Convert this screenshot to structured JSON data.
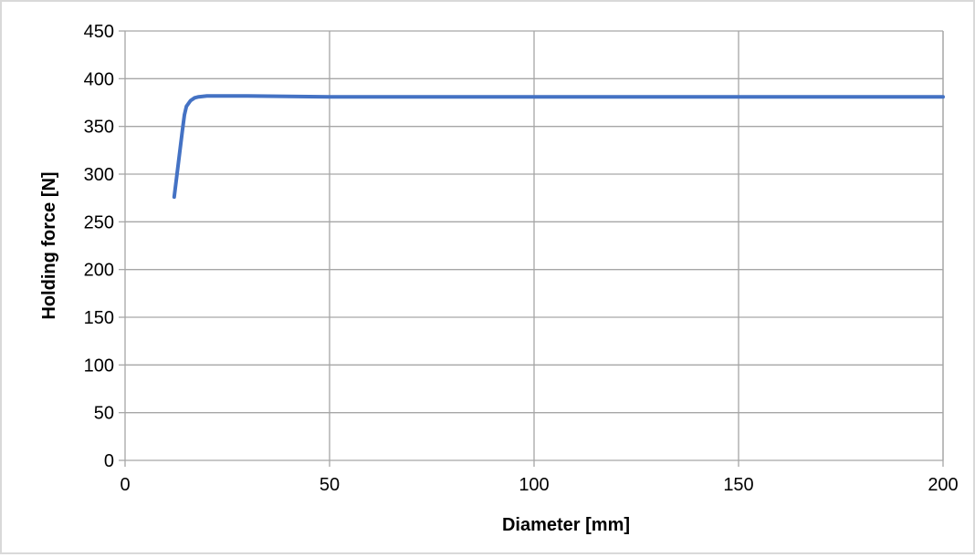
{
  "chart_data": {
    "type": "line",
    "title": "",
    "xlabel": "Diameter [mm]",
    "ylabel": "Holding force [N]",
    "xlim": [
      0,
      200
    ],
    "ylim": [
      0,
      450
    ],
    "xticks": [
      0,
      50,
      100,
      150,
      200
    ],
    "yticks": [
      0,
      50,
      100,
      150,
      200,
      250,
      300,
      350,
      400,
      450
    ],
    "x_tick_labels": [
      "0",
      "50",
      "100",
      "150",
      "200"
    ],
    "y_tick_labels": [
      "0",
      "50",
      "100",
      "150",
      "200",
      "250",
      "300",
      "350",
      "400",
      "450"
    ],
    "grid": true,
    "legend": "none",
    "colors": {
      "series": "#4472c4",
      "grid": "#a6a6a6",
      "frame": "#d9d9d9"
    },
    "series": [
      {
        "x": [
          12,
          13,
          14,
          14.5,
          15,
          16,
          17,
          18,
          20,
          25,
          30,
          50,
          100,
          150,
          200
        ],
        "y": [
          276,
          310,
          345,
          362,
          371,
          377,
          380,
          381,
          382,
          382,
          382,
          381,
          381,
          381,
          381
        ]
      }
    ]
  }
}
